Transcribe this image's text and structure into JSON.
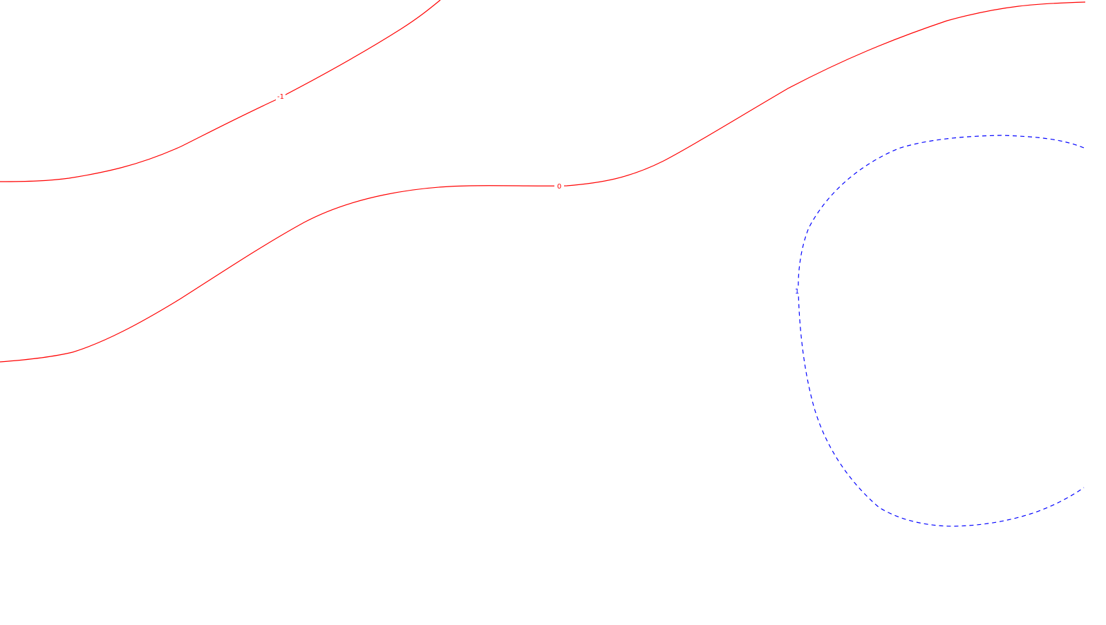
{
  "chart_data": {
    "type": "contour",
    "title": "",
    "xlabel": "",
    "ylabel": "",
    "grid": false,
    "legend": "none",
    "colors": {
      "negative_or_zero": "#ff0000",
      "positive": "#0000ff"
    },
    "levels": [
      {
        "level": -1,
        "label": "-1",
        "color": "#ff0000",
        "style": "solid",
        "closed": false
      },
      {
        "level": 0,
        "label": "0",
        "color": "#ff0000",
        "style": "solid",
        "closed": false
      },
      {
        "level": 1,
        "label": "1",
        "color": "#0000ff",
        "style": "dashed",
        "closed": true
      }
    ]
  }
}
